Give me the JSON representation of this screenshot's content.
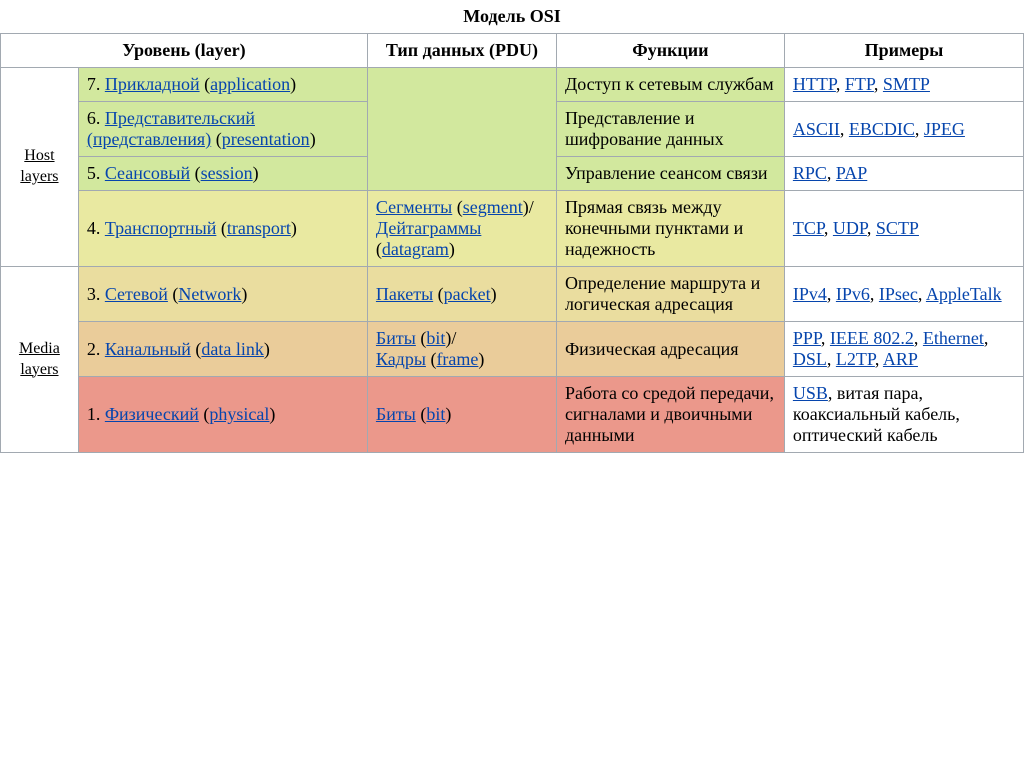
{
  "title": "Модель OSI",
  "headers": {
    "layer": "Уровень (layer)",
    "pdu": "Тип данных (PDU)",
    "func": "Функции",
    "ex": "Примеры"
  },
  "side": {
    "host_line1": "Host",
    "host_line2": "layers",
    "media_line1": "Media",
    "media_line2": "layers"
  },
  "colors": {
    "green": "#d2e89e",
    "yellow": "#e9e9a1",
    "tan": "#eadd9f",
    "orange": "#eacc9a",
    "red": "#eb988b",
    "link": "#0645ad",
    "border": "#a2a9b1"
  },
  "layers": [
    {
      "num": "7. ",
      "name_ru": "Прикладной",
      "name_en": "application",
      "func": "Доступ к сетевым службам",
      "ex": [
        "HTTP",
        "FTP",
        "SMTP"
      ],
      "bg": "green"
    },
    {
      "num": "6. ",
      "name_ru": "Представительский (представления)",
      "name_en": "presentation",
      "func": "Представление и шифрование данных",
      "ex": [
        "ASCII",
        "EBCDIC",
        "JPEG"
      ],
      "bg": "green"
    },
    {
      "num": "5. ",
      "name_ru": "Сеансовый",
      "name_en": "session",
      "func": "Управление сеансом связи",
      "ex": [
        "RPC",
        "PAP"
      ],
      "bg": "green"
    },
    {
      "num": "4. ",
      "name_ru": "Транспортный",
      "name_en": "transport",
      "pdu_1": "Сегменты",
      "pdu_1en": "segment",
      "pdu_2": "Дейтаграммы",
      "pdu_2en": "datagram",
      "func": "Прямая связь между конечными пунктами и надежность",
      "ex": [
        "TCP",
        "UDP",
        "SCTP"
      ],
      "bg": "yellow"
    },
    {
      "num": "3. ",
      "name_ru": "Сетевой",
      "name_en": "Network",
      "pdu_1": "Пакеты",
      "pdu_1en": "packet",
      "func": "Определение маршрута и логическая адресация",
      "ex": [
        "IPv4",
        "IPv6",
        "IPsec",
        "AppleTalk"
      ],
      "bg": "tan"
    },
    {
      "num": "2. ",
      "name_ru": "Канальный",
      "name_en": "data link",
      "pdu_1": "Биты",
      "pdu_1en": "bit",
      "pdu_2": "Кадры",
      "pdu_2en": "frame",
      "func": "Физическая адресация",
      "ex": [
        "PPP",
        "IEEE 802.2",
        "Ethernet",
        "DSL",
        "L2TP",
        "ARP"
      ],
      "bg": "orange"
    },
    {
      "num": "1. ",
      "name_ru": "Физический",
      "name_en": "physical",
      "pdu_1": "Биты",
      "pdu_1en": "bit",
      "func": "Работа со средой передачи, сигналами и двоичными данными",
      "ex_mixed": [
        {
          "t": "USB",
          "link": true
        },
        {
          "t": "витая пара",
          "link": false
        },
        {
          "t": "коаксиальный кабель",
          "link": false
        },
        {
          "t": "оптический кабель",
          "link": false
        }
      ],
      "bg": "red"
    }
  ]
}
